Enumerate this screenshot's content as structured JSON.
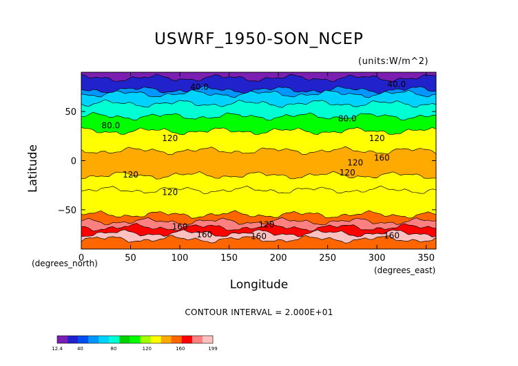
{
  "chart_data": {
    "type": "heatmap",
    "title": "USWRF_1950-SON_NCEP",
    "units": "(units:W/m^2)",
    "xlabel": "Longitude",
    "ylabel": "Latitude",
    "x_unit_label": "(degrees_east)",
    "y_unit_label": "(degrees_north)",
    "xlim": [
      0,
      360
    ],
    "ylim": [
      -90,
      90
    ],
    "x_ticks": [
      0,
      50,
      100,
      150,
      200,
      250,
      300,
      350
    ],
    "x_tick_labels": [
      "0",
      "50",
      "100",
      "150",
      "200",
      "250",
      "300",
      "350"
    ],
    "y_ticks": [
      50,
      0,
      -50
    ],
    "y_tick_labels": [
      "50",
      "0",
      "−50"
    ],
    "contour_labels": [
      {
        "text": "40.0",
        "lon": 120,
        "lat": 72
      },
      {
        "text": "40.0",
        "lon": 320,
        "lat": 75
      },
      {
        "text": "80.0",
        "lon": 30,
        "lat": 33
      },
      {
        "text": "80.0",
        "lon": 270,
        "lat": 40
      },
      {
        "text": "120",
        "lon": 90,
        "lat": 20
      },
      {
        "text": "120",
        "lon": 300,
        "lat": 20
      },
      {
        "text": "120",
        "lon": 50,
        "lat": -17
      },
      {
        "text": "120",
        "lon": 90,
        "lat": -35
      },
      {
        "text": "120",
        "lon": 270,
        "lat": -15
      },
      {
        "text": "120",
        "lon": 278,
        "lat": -5
      },
      {
        "text": "160",
        "lon": 305,
        "lat": 0
      },
      {
        "text": "160",
        "lon": 100,
        "lat": -70
      },
      {
        "text": "160",
        "lon": 125,
        "lat": -78
      },
      {
        "text": "160",
        "lon": 180,
        "lat": -80
      },
      {
        "text": "120",
        "lon": 188,
        "lat": -68
      },
      {
        "text": "160",
        "lon": 315,
        "lat": -79
      }
    ],
    "contour_interval_text": "CONTOUR INTERVAL = 2.000E+01",
    "colorbar": {
      "min": 12.4,
      "max": 199,
      "tick_labels": [
        "12.4",
        "40",
        "80",
        "120",
        "160",
        "199"
      ],
      "colors": [
        "#7a1fb2",
        "#2222cc",
        "#0050f0",
        "#0096ff",
        "#00d2ff",
        "#00ffd2",
        "#00d200",
        "#00ff00",
        "#a0ff00",
        "#ffff00",
        "#ffaa00",
        "#ff6600",
        "#ff0000",
        "#ff8080",
        "#ffc0c0"
      ]
    },
    "zonal_bands_W_m2": [
      {
        "lat_from": 90,
        "lat_to": 84,
        "value": 20
      },
      {
        "lat_from": 84,
        "lat_to": 72,
        "value": 35
      },
      {
        "lat_from": 72,
        "lat_to": 68,
        "value": 50
      },
      {
        "lat_from": 68,
        "lat_to": 58,
        "value": 70
      },
      {
        "lat_from": 58,
        "lat_to": 45,
        "value": 85
      },
      {
        "lat_from": 45,
        "lat_to": 30,
        "value": 105
      },
      {
        "lat_from": 30,
        "lat_to": 10,
        "value": 125
      },
      {
        "lat_from": 10,
        "lat_to": -15,
        "value": 140
      },
      {
        "lat_from": -15,
        "lat_to": -30,
        "value": 130
      },
      {
        "lat_from": -30,
        "lat_to": -55,
        "value": 135
      },
      {
        "lat_from": -55,
        "lat_to": -62,
        "value": 155
      },
      {
        "lat_from": -62,
        "lat_to": -68,
        "value": 180
      },
      {
        "lat_from": -68,
        "lat_to": -74,
        "value": 165
      },
      {
        "lat_from": -74,
        "lat_to": -80,
        "value": 190
      },
      {
        "lat_from": -80,
        "lat_to": -90,
        "value": 150
      }
    ],
    "grid": false,
    "legend_placement": "bottom-left"
  }
}
